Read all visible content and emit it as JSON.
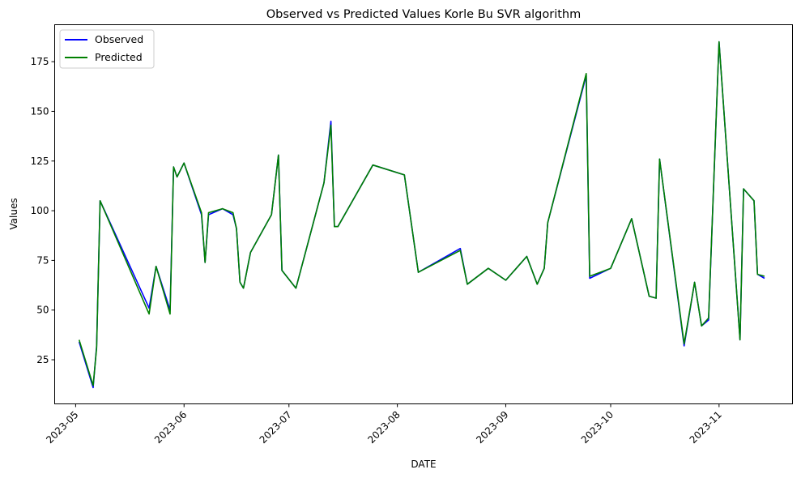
{
  "chart_data": {
    "type": "line",
    "title": "Observed vs Predicted Values Korle Bu SVR algorithm",
    "xlabel": "DATE",
    "ylabel": "Values",
    "xlim": [
      "2023-04-25",
      "2023-11-22"
    ],
    "ylim": [
      2.8,
      193.6
    ],
    "x_ticks": [
      "2023-05",
      "2023-06",
      "2023-07",
      "2023-08",
      "2023-09",
      "2023-10",
      "2023-11"
    ],
    "x_tick_dates": [
      "2023-05-01",
      "2023-06-01",
      "2023-07-01",
      "2023-08-01",
      "2023-09-01",
      "2023-10-01",
      "2023-11-01"
    ],
    "y_ticks": [
      25,
      50,
      75,
      100,
      125,
      150,
      175
    ],
    "grid": false,
    "legend_position": "top-left",
    "x": [
      "2023-05-02",
      "2023-05-06",
      "2023-05-07",
      "2023-05-08",
      "2023-05-22",
      "2023-05-24",
      "2023-05-28",
      "2023-05-29",
      "2023-05-30",
      "2023-06-01",
      "2023-06-06",
      "2023-06-07",
      "2023-06-08",
      "2023-06-12",
      "2023-06-15",
      "2023-06-16",
      "2023-06-17",
      "2023-06-18",
      "2023-06-20",
      "2023-06-26",
      "2023-06-28",
      "2023-06-29",
      "2023-07-03",
      "2023-07-11",
      "2023-07-13",
      "2023-07-14",
      "2023-07-15",
      "2023-07-25",
      "2023-08-03",
      "2023-08-07",
      "2023-08-19",
      "2023-08-21",
      "2023-08-27",
      "2023-09-01",
      "2023-09-07",
      "2023-09-10",
      "2023-09-12",
      "2023-09-13",
      "2023-09-24",
      "2023-09-25",
      "2023-10-01",
      "2023-10-07",
      "2023-10-12",
      "2023-10-14",
      "2023-10-15",
      "2023-10-22",
      "2023-10-25",
      "2023-10-27",
      "2023-10-29",
      "2023-11-01",
      "2023-11-07",
      "2023-11-08",
      "2023-11-11",
      "2023-11-12",
      "2023-11-14"
    ],
    "series": [
      {
        "name": "Observed",
        "color": "#0000ff",
        "values": [
          34,
          11,
          32,
          105,
          51,
          72,
          50,
          122,
          117,
          124,
          98,
          74,
          98,
          101,
          98,
          91,
          64,
          61,
          79,
          98,
          128,
          70,
          61,
          114,
          145,
          92,
          92,
          123,
          118,
          69,
          81,
          63,
          71,
          65,
          77,
          63,
          71,
          94,
          168,
          66,
          71,
          96,
          57,
          56,
          126,
          32,
          64,
          42,
          45,
          185,
          35,
          111,
          105,
          68,
          66
        ]
      },
      {
        "name": "Predicted",
        "color": "#008000",
        "values": [
          35,
          12,
          31,
          105,
          48,
          72,
          48,
          122,
          117,
          124,
          99,
          74,
          99,
          101,
          99,
          91,
          64,
          61,
          79,
          98,
          128,
          70,
          61,
          114,
          143,
          92,
          92,
          123,
          118,
          69,
          80,
          63,
          71,
          65,
          77,
          63,
          71,
          94,
          169,
          67,
          71,
          96,
          57,
          56,
          126,
          33,
          64,
          42,
          46,
          185,
          35,
          111,
          105,
          68,
          67
        ]
      }
    ]
  }
}
